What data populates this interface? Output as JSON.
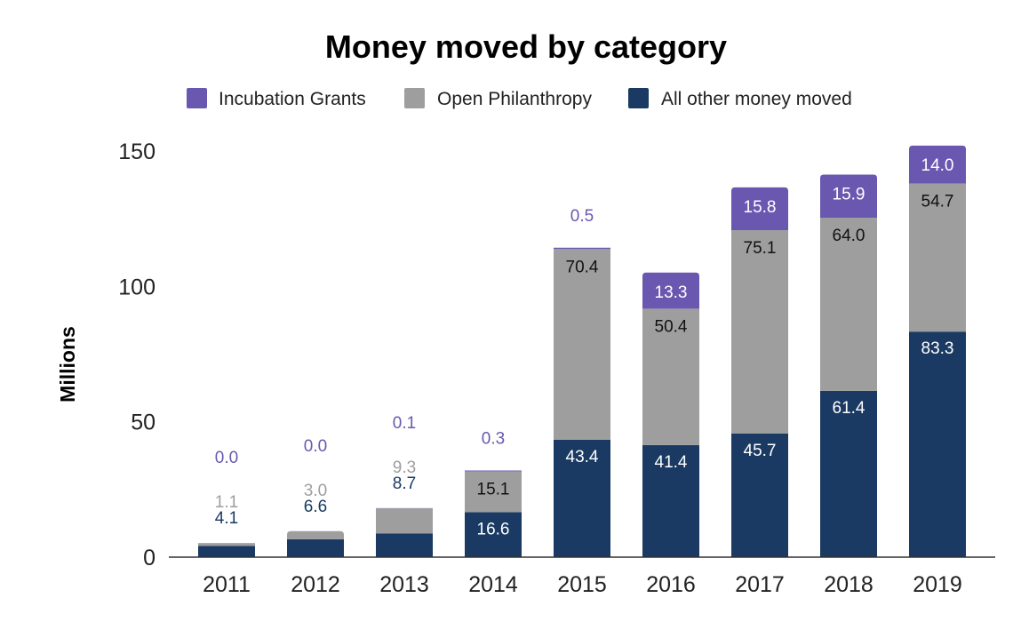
{
  "chart_data": {
    "type": "bar",
    "stacked": true,
    "title": "Money moved by category",
    "xlabel": "",
    "ylabel": "Millions",
    "ylim": [
      0,
      150
    ],
    "yticks": [
      0,
      50,
      100,
      150
    ],
    "ytick_labels": [
      "0",
      "50",
      "100",
      "150"
    ],
    "categories": [
      "2011",
      "2012",
      "2013",
      "2014",
      "2015",
      "2016",
      "2017",
      "2018",
      "2019"
    ],
    "legend_position": "top-center",
    "series": [
      {
        "name": "All other money moved",
        "color": "#1a3a63",
        "values": [
          4.1,
          6.6,
          8.7,
          16.6,
          43.4,
          41.4,
          45.7,
          61.4,
          83.3
        ],
        "labels": [
          "4.1",
          "6.6",
          "8.7",
          "16.6",
          "43.4",
          "41.4",
          "45.7",
          "61.4",
          "83.3"
        ]
      },
      {
        "name": "Open Philanthropy",
        "color": "#9e9e9e",
        "values": [
          1.1,
          3.0,
          9.3,
          15.1,
          70.4,
          50.4,
          75.1,
          64.0,
          54.7
        ],
        "labels": [
          "1.1",
          "3.0",
          "9.3",
          "15.1",
          "70.4",
          "50.4",
          "75.1",
          "64.0",
          "54.7"
        ]
      },
      {
        "name": "Incubation Grants",
        "color": "#6a58b0",
        "values": [
          0.0,
          0.0,
          0.1,
          0.3,
          0.5,
          13.3,
          15.8,
          15.9,
          14.0
        ],
        "labels": [
          "0.0",
          "0.0",
          "0.1",
          "0.3",
          "0.5",
          "13.3",
          "15.8",
          "15.9",
          "14.0"
        ]
      }
    ],
    "legend_order": [
      "Incubation Grants",
      "Open Philanthropy",
      "All other money moved"
    ]
  }
}
